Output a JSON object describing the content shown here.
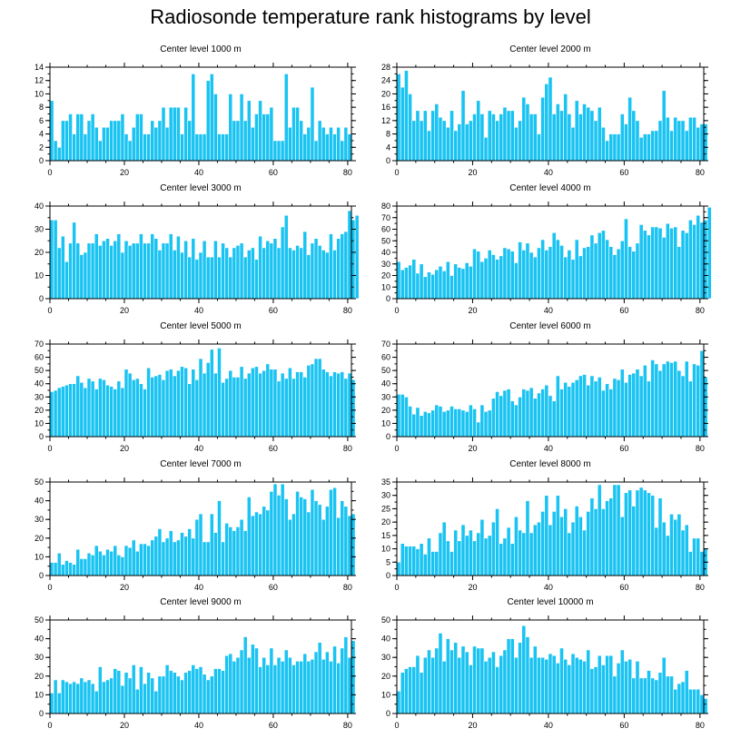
{
  "title": "Radiosonde temperature rank histograms by level",
  "colors": {
    "bar": "#19c3f2",
    "axis": "#000000",
    "background": "#ffffff"
  },
  "chart_data": [
    {
      "type": "bar",
      "title": "Center level 1000 m",
      "xlim": [
        0,
        81
      ],
      "ylim": [
        0,
        14
      ],
      "xticks": [
        0,
        20,
        40,
        60,
        80
      ],
      "yticks": [
        0,
        2,
        4,
        6,
        8,
        10,
        12,
        14
      ],
      "values": [
        9,
        3,
        2,
        6,
        6,
        7,
        4,
        7,
        7,
        4,
        6,
        7,
        5,
        3,
        5,
        5,
        6,
        6,
        6,
        7,
        4,
        3,
        5,
        7,
        7,
        4,
        4,
        6,
        5,
        6,
        8,
        5,
        8,
        8,
        8,
        4,
        8,
        6,
        13,
        4,
        4,
        4,
        12,
        13,
        10,
        4,
        4,
        4,
        10,
        6,
        6,
        10,
        6,
        9,
        5,
        7,
        9,
        7,
        7,
        8,
        3,
        3,
        3,
        13,
        5,
        8,
        8,
        6,
        4,
        5,
        11,
        3,
        6,
        5,
        4,
        5,
        4,
        5,
        3,
        5,
        4
      ]
    },
    {
      "type": "bar",
      "title": "Center level 2000 m",
      "xlim": [
        0,
        81
      ],
      "ylim": [
        0,
        28
      ],
      "xticks": [
        0,
        20,
        40,
        60,
        80
      ],
      "yticks": [
        0,
        4,
        8,
        12,
        16,
        20,
        24,
        28
      ],
      "values": [
        26,
        22,
        27,
        20,
        12,
        15,
        12,
        15,
        9,
        15,
        17,
        13,
        12,
        10,
        15,
        9,
        11,
        21,
        11,
        12,
        14,
        18,
        14,
        7,
        15,
        14,
        12,
        14,
        16,
        15,
        15,
        10,
        12,
        19,
        17,
        14,
        14,
        8,
        19,
        23,
        25,
        14,
        17,
        15,
        20,
        14,
        10,
        18,
        14,
        17,
        16,
        15,
        12,
        16,
        10,
        6,
        8,
        8,
        8,
        14,
        11,
        19,
        15,
        12,
        7,
        8,
        8,
        9,
        9,
        12,
        21,
        13,
        9,
        13,
        12,
        12,
        9,
        13,
        13,
        10,
        11,
        11
      ]
    },
    {
      "type": "bar",
      "title": "Center level 3000 m",
      "xlim": [
        0,
        81
      ],
      "ylim": [
        0,
        40
      ],
      "xticks": [
        0,
        20,
        40,
        60,
        80
      ],
      "yticks": [
        0,
        10,
        20,
        30,
        40
      ],
      "values": [
        34,
        34,
        22,
        27,
        16,
        24,
        33,
        24,
        19,
        20,
        24,
        24,
        28,
        23,
        25,
        26,
        23,
        25,
        28,
        20,
        25,
        23,
        24,
        24,
        28,
        24,
        24,
        28,
        26,
        21,
        24,
        24,
        28,
        21,
        27,
        20,
        25,
        18,
        26,
        17,
        20,
        25,
        18,
        18,
        25,
        18,
        24,
        22,
        18,
        22,
        23,
        24,
        18,
        21,
        22,
        17,
        27,
        22,
        25,
        24,
        26,
        22,
        31,
        36,
        22,
        21,
        23,
        22,
        29,
        19,
        24,
        26,
        23,
        21,
        20,
        28,
        21,
        26,
        28,
        29,
        38,
        34,
        36
      ]
    },
    {
      "type": "bar",
      "title": "Center level 4000 m",
      "xlim": [
        0,
        81
      ],
      "ylim": [
        0,
        80
      ],
      "xticks": [
        0,
        20,
        40,
        60,
        80
      ],
      "yticks": [
        0,
        10,
        20,
        30,
        40,
        50,
        60,
        70,
        80
      ],
      "values": [
        32,
        25,
        27,
        29,
        34,
        22,
        30,
        19,
        23,
        21,
        25,
        28,
        24,
        32,
        20,
        30,
        27,
        26,
        31,
        28,
        43,
        41,
        32,
        35,
        42,
        38,
        34,
        37,
        44,
        43,
        41,
        31,
        49,
        42,
        48,
        40,
        36,
        44,
        51,
        42,
        45,
        57,
        51,
        46,
        36,
        42,
        34,
        51,
        37,
        44,
        45,
        55,
        48,
        57,
        59,
        51,
        45,
        38,
        43,
        50,
        69,
        45,
        41,
        48,
        64,
        59,
        55,
        62,
        62,
        61,
        53,
        65,
        61,
        62,
        45,
        59,
        57,
        68,
        64,
        72,
        66,
        68,
        79
      ]
    },
    {
      "type": "bar",
      "title": "Center level 5000 m",
      "xlim": [
        0,
        81
      ],
      "ylim": [
        0,
        70
      ],
      "xticks": [
        0,
        20,
        40,
        60,
        80
      ],
      "yticks": [
        0,
        10,
        20,
        30,
        40,
        50,
        60,
        70
      ],
      "values": [
        34,
        35,
        37,
        38,
        39,
        40,
        40,
        46,
        41,
        37,
        44,
        42,
        36,
        44,
        43,
        39,
        38,
        36,
        42,
        37,
        51,
        48,
        43,
        44,
        40,
        36,
        52,
        45,
        46,
        47,
        43,
        50,
        51,
        46,
        50,
        53,
        52,
        40,
        51,
        43,
        59,
        48,
        56,
        66,
        48,
        67,
        41,
        44,
        50,
        45,
        45,
        53,
        44,
        48,
        52,
        53,
        48,
        50,
        55,
        51,
        51,
        42,
        48,
        44,
        52,
        44,
        49,
        49,
        45,
        54,
        55,
        59,
        59,
        51,
        49,
        46,
        49,
        48,
        49,
        44,
        48,
        43
      ]
    },
    {
      "type": "bar",
      "title": "Center level 6000 m",
      "xlim": [
        0,
        81
      ],
      "ylim": [
        0,
        70
      ],
      "xticks": [
        0,
        20,
        40,
        60,
        80
      ],
      "yticks": [
        0,
        10,
        20,
        30,
        40,
        50,
        60,
        70
      ],
      "values": [
        32,
        32,
        30,
        23,
        17,
        22,
        16,
        19,
        18,
        20,
        24,
        23,
        19,
        20,
        23,
        21,
        21,
        20,
        19,
        24,
        21,
        11,
        24,
        19,
        20,
        29,
        34,
        31,
        35,
        36,
        27,
        24,
        30,
        36,
        35,
        37,
        29,
        33,
        36,
        39,
        31,
        27,
        46,
        36,
        41,
        38,
        41,
        43,
        46,
        47,
        39,
        46,
        42,
        45,
        35,
        40,
        36,
        44,
        43,
        51,
        41,
        47,
        48,
        51,
        46,
        54,
        42,
        58,
        55,
        50,
        55,
        57,
        56,
        57,
        50,
        46,
        57,
        42,
        55,
        54,
        65,
        45
      ]
    },
    {
      "type": "bar",
      "title": "Center level 7000 m",
      "xlim": [
        0,
        81
      ],
      "ylim": [
        0,
        50
      ],
      "xticks": [
        0,
        20,
        40,
        60,
        80
      ],
      "yticks": [
        0,
        10,
        20,
        30,
        40,
        50
      ],
      "values": [
        7,
        7,
        12,
        6,
        8,
        7,
        6,
        14,
        9,
        9,
        12,
        11,
        16,
        13,
        11,
        14,
        13,
        16,
        11,
        10,
        16,
        15,
        19,
        13,
        17,
        17,
        16,
        19,
        21,
        25,
        18,
        20,
        24,
        18,
        19,
        23,
        21,
        25,
        20,
        30,
        33,
        18,
        18,
        33,
        23,
        40,
        18,
        28,
        26,
        24,
        26,
        30,
        24,
        42,
        32,
        34,
        33,
        37,
        35,
        45,
        49,
        43,
        49,
        41,
        30,
        33,
        45,
        42,
        41,
        34,
        46,
        40,
        38,
        30,
        37,
        46,
        47,
        31,
        40,
        37,
        32,
        33
      ]
    },
    {
      "type": "bar",
      "title": "Center level 8000 m",
      "xlim": [
        0,
        81
      ],
      "ylim": [
        0,
        35
      ],
      "xticks": [
        0,
        20,
        40,
        60,
        80
      ],
      "yticks": [
        0,
        5,
        10,
        15,
        20,
        25,
        30,
        35
      ],
      "values": [
        5,
        12,
        11,
        11,
        11,
        10,
        12,
        8,
        14,
        9,
        9,
        16,
        20,
        13,
        9,
        17,
        13,
        19,
        15,
        17,
        13,
        16,
        21,
        14,
        15,
        20,
        25,
        12,
        14,
        18,
        12,
        22,
        17,
        16,
        28,
        16,
        19,
        20,
        24,
        30,
        19,
        24,
        30,
        22,
        25,
        16,
        20,
        26,
        22,
        17,
        24,
        29,
        25,
        34,
        25,
        28,
        29,
        34,
        34,
        22,
        31,
        32,
        26,
        32,
        33,
        32,
        31,
        30,
        18,
        29,
        20,
        15,
        23,
        21,
        23,
        17,
        19,
        9,
        14,
        14,
        9,
        10
      ]
    },
    {
      "type": "bar",
      "title": "Center level 9000 m",
      "xlim": [
        0,
        81
      ],
      "ylim": [
        0,
        50
      ],
      "xticks": [
        0,
        20,
        40,
        60,
        80
      ],
      "yticks": [
        0,
        10,
        20,
        30,
        40,
        50
      ],
      "values": [
        11,
        18,
        11,
        18,
        17,
        16,
        17,
        16,
        19,
        17,
        18,
        16,
        12,
        25,
        17,
        18,
        19,
        24,
        23,
        15,
        22,
        19,
        26,
        13,
        25,
        16,
        22,
        19,
        12,
        20,
        20,
        26,
        23,
        22,
        20,
        18,
        22,
        23,
        26,
        24,
        25,
        21,
        18,
        20,
        24,
        24,
        23,
        31,
        32,
        28,
        30,
        34,
        41,
        30,
        37,
        35,
        25,
        30,
        26,
        35,
        26,
        30,
        28,
        34,
        30,
        26,
        28,
        28,
        32,
        28,
        29,
        33,
        38,
        29,
        33,
        28,
        36,
        27,
        35,
        41,
        30,
        39
      ]
    },
    {
      "type": "bar",
      "title": "Center level 10000 m",
      "xlim": [
        0,
        81
      ],
      "ylim": [
        0,
        50
      ],
      "xticks": [
        0,
        20,
        40,
        60,
        80
      ],
      "yticks": [
        0,
        10,
        20,
        30,
        40,
        50
      ],
      "values": [
        12,
        22,
        24,
        25,
        25,
        31,
        22,
        30,
        34,
        30,
        35,
        43,
        28,
        40,
        34,
        38,
        30,
        36,
        33,
        26,
        36,
        35,
        35,
        28,
        30,
        33,
        25,
        31,
        34,
        40,
        40,
        30,
        38,
        47,
        41,
        30,
        36,
        30,
        30,
        29,
        32,
        31,
        27,
        35,
        29,
        26,
        32,
        30,
        29,
        28,
        34,
        24,
        25,
        31,
        26,
        31,
        31,
        20,
        27,
        34,
        28,
        29,
        19,
        28,
        19,
        19,
        23,
        19,
        18,
        22,
        30,
        20,
        20,
        13,
        16,
        17,
        23,
        13,
        13,
        13,
        10,
        8
      ]
    }
  ]
}
